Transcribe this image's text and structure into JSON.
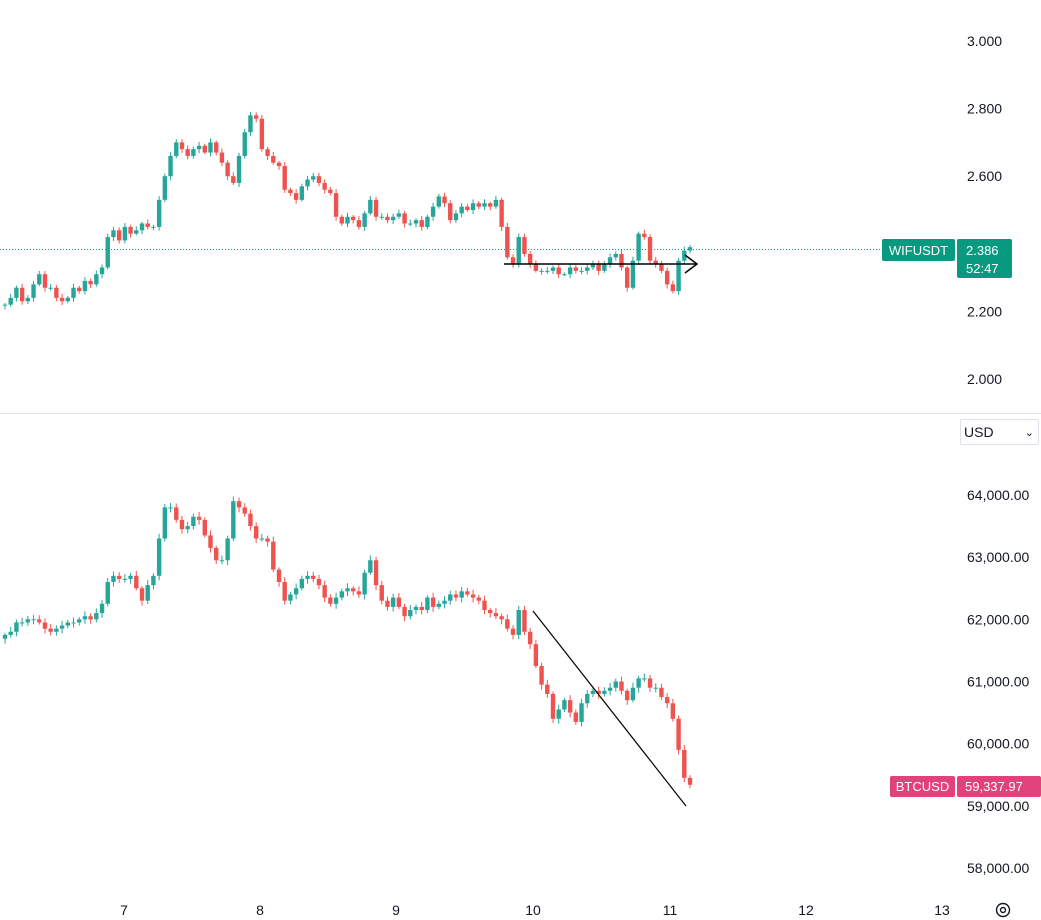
{
  "chart_data": [
    {
      "type": "candlestick",
      "symbol": "WIFUSDT",
      "last_price": "2.386",
      "countdown": "52:47",
      "y_ticks": [
        "3.000",
        "2.800",
        "2.600",
        "2.200",
        "2.000"
      ],
      "ylim": [
        1.95,
        3.05
      ],
      "x_ticks": [
        "7",
        "8",
        "9",
        "10",
        "11",
        "12",
        "13"
      ],
      "price_series": [
        2.22,
        2.24,
        2.27,
        2.23,
        2.24,
        2.28,
        2.31,
        2.27,
        2.27,
        2.24,
        2.23,
        2.24,
        2.27,
        2.26,
        2.29,
        2.28,
        2.31,
        2.33,
        2.42,
        2.44,
        2.41,
        2.45,
        2.43,
        2.44,
        2.46,
        2.45,
        2.45,
        2.53,
        2.6,
        2.66,
        2.7,
        2.68,
        2.66,
        2.68,
        2.69,
        2.67,
        2.7,
        2.67,
        2.64,
        2.6,
        2.58,
        2.66,
        2.73,
        2.78,
        2.77,
        2.68,
        2.66,
        2.64,
        2.63,
        2.56,
        2.55,
        2.53,
        2.57,
        2.59,
        2.6,
        2.58,
        2.56,
        2.55,
        2.48,
        2.46,
        2.48,
        2.47,
        2.45,
        2.49,
        2.53,
        2.48,
        2.48,
        2.47,
        2.48,
        2.49,
        2.46,
        2.46,
        2.47,
        2.45,
        2.48,
        2.51,
        2.54,
        2.52,
        2.47,
        2.49,
        2.51,
        2.5,
        2.52,
        2.51,
        2.52,
        2.51,
        2.53,
        2.45,
        2.36,
        2.34,
        2.42,
        2.37,
        2.34,
        2.32,
        2.32,
        2.32,
        2.33,
        2.31,
        2.31,
        2.33,
        2.32,
        2.32,
        2.33,
        2.34,
        2.32,
        2.34,
        2.36,
        2.37,
        2.33,
        2.27,
        2.35,
        2.43,
        2.42,
        2.35,
        2.34,
        2.32,
        2.28,
        2.26,
        2.35,
        2.38,
        2.39
      ],
      "annotation": "horizontal arrow at 2.34 from 10 to 11"
    },
    {
      "type": "candlestick",
      "symbol": "BTCUSD",
      "last_price": "59,337.97",
      "currency": "USD",
      "y_ticks": [
        "64,000.00",
        "63,000.00",
        "62,000.00",
        "61,000.00",
        "60,000.00",
        "59,000.00",
        "58,000.00"
      ],
      "ylim": [
        57700,
        64800
      ],
      "x_ticks": [
        "7",
        "8",
        "9",
        "10",
        "11",
        "12",
        "13"
      ],
      "price_series": [
        61750,
        61800,
        61950,
        61950,
        62000,
        62000,
        61950,
        61850,
        61800,
        61850,
        61900,
        61950,
        61950,
        62000,
        62050,
        62000,
        62100,
        62250,
        62600,
        62700,
        62650,
        62650,
        62700,
        62500,
        62300,
        62550,
        62700,
        63300,
        63800,
        63800,
        63600,
        63450,
        63500,
        63650,
        63600,
        63350,
        63150,
        62950,
        62950,
        63300,
        63900,
        63800,
        63700,
        63500,
        63300,
        63300,
        63250,
        62800,
        62600,
        62300,
        62400,
        62500,
        62650,
        62700,
        62650,
        62550,
        62350,
        62250,
        62350,
        62450,
        62500,
        62450,
        62400,
        62750,
        62950,
        62550,
        62300,
        62200,
        62350,
        62200,
        62050,
        62150,
        62200,
        62150,
        62350,
        62200,
        62250,
        62300,
        62400,
        62350,
        62450,
        62400,
        62350,
        62300,
        62150,
        62100,
        62050,
        62000,
        61850,
        61750,
        62150,
        61800,
        61600,
        61250,
        60950,
        60800,
        60400,
        60550,
        60700,
        60500,
        60350,
        60650,
        60800,
        60850,
        60800,
        60850,
        60900,
        61000,
        60850,
        60700,
        60900,
        61050,
        61050,
        60900,
        60900,
        60750,
        60650,
        60400,
        59900,
        59450,
        59338
      ],
      "annotation": "downward trend line from 10 to 11"
    }
  ],
  "colors": {
    "up": "#26a69a",
    "down": "#ef5350",
    "wif_badge": "#089981",
    "btc_badge": "#e2427a",
    "grid_divider": "#e0e3eb",
    "axis_text": "#131722"
  },
  "icons": {
    "settings": "settings-icon"
  }
}
